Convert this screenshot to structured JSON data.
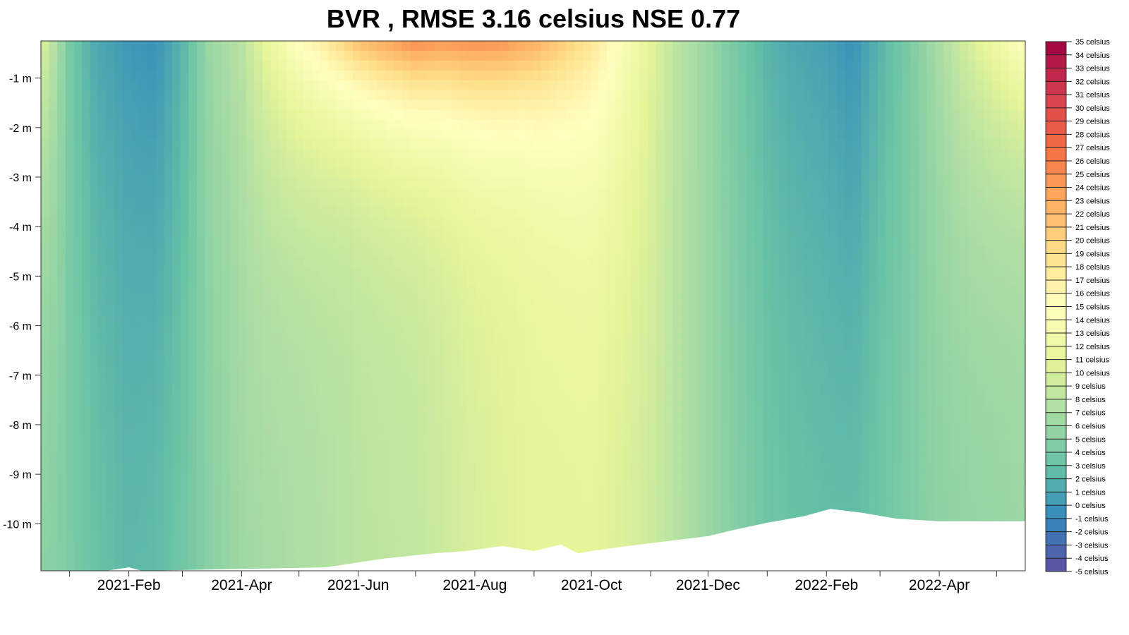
{
  "chart_data": {
    "type": "heatmap",
    "title": "BVR , RMSE 3.16 celsius NSE 0.77",
    "xlabel": "",
    "ylabel": "",
    "x_tick_labels": [
      "2021-Feb",
      "2021-Apr",
      "2021-Jun",
      "2021-Aug",
      "2021-Oct",
      "2021-Dec",
      "2022-Feb",
      "2022-Apr"
    ],
    "x_ticks": [
      "2021-01-01",
      "2021-02-01",
      "2021-03-01",
      "2021-04-01",
      "2021-05-01",
      "2021-06-01",
      "2021-07-01",
      "2021-08-01",
      "2021-09-01",
      "2021-10-01",
      "2021-11-01",
      "2021-12-01",
      "2022-01-01",
      "2022-02-01",
      "2022-03-01",
      "2022-04-01",
      "2022-05-01"
    ],
    "xlim": [
      "2020-12-17",
      "2022-05-16"
    ],
    "y_tick_values": [
      -1,
      -2,
      -3,
      -4,
      -5,
      -6,
      -7,
      -8,
      -9,
      -10
    ],
    "y_tick_labels": [
      "-1 m",
      "-2 m",
      "-3 m",
      "-4 m",
      "-5 m",
      "-6 m",
      "-7 m",
      "-8 m",
      "-9 m",
      "-10 m"
    ],
    "ylim": [
      -10.95,
      -0.25
    ],
    "grid": false,
    "colorbar": {
      "min": -5,
      "max": 35,
      "step": 1,
      "unit_label": "celsius",
      "labels": [
        "35 celsius",
        "34 celsius",
        "33 celsius",
        "32 celsius",
        "31 celsius",
        "30 celsius",
        "29 celsius",
        "28 celsius",
        "27 celsius",
        "26 celsius",
        "25 celsius",
        "24 celsius",
        "23 celsius",
        "22 celsius",
        "21 celsius",
        "20 celsius",
        "19 celsius",
        "18 celsius",
        "17 celsius",
        "16 celsius",
        "15 celsius",
        "14 celsius",
        "13 celsius",
        "12 celsius",
        "11 celsius",
        "10 celsius",
        "9 celsius",
        "8 celsius",
        "7 celsius",
        "6 celsius",
        "5 celsius",
        "4 celsius",
        "3 celsius",
        "2 celsius",
        "1 celsius",
        "0 celsius",
        "-1 celsius",
        "-2 celsius",
        "-3 celsius",
        "-4 celsius",
        "-5 celsius"
      ],
      "palette": [
        "#9e0142",
        "#d53e4f",
        "#f46d43",
        "#fdae61",
        "#fee08b",
        "#ffffbf",
        "#e6f598",
        "#abdda4",
        "#66c2a5",
        "#3288bd",
        "#5e4fa2"
      ]
    },
    "bottom_depth": {
      "dates": [
        "2021-01-20",
        "2021-02-01",
        "2021-02-08",
        "2021-05-15",
        "2021-06-01",
        "2021-06-15",
        "2021-07-10",
        "2021-07-28",
        "2021-08-15",
        "2021-09-01",
        "2021-09-15",
        "2021-09-24",
        "2021-10-01",
        "2021-10-20",
        "2021-11-10",
        "2021-12-01",
        "2021-12-15",
        "2022-01-01",
        "2022-01-20",
        "2022-02-03",
        "2022-02-20",
        "2022-03-10",
        "2022-04-01",
        "2022-05-10"
      ],
      "depths": [
        -10.95,
        -10.88,
        -10.95,
        -10.88,
        -10.78,
        -10.7,
        -10.6,
        -10.55,
        -10.45,
        -10.55,
        -10.42,
        -10.6,
        -10.55,
        -10.45,
        -10.35,
        -10.25,
        -10.12,
        -9.98,
        -9.85,
        -9.7,
        -9.78,
        -9.9,
        -9.95,
        -9.95
      ]
    },
    "temperature_model": {
      "surface_dates": [
        "2020-12-17",
        "2021-01-01",
        "2021-01-15",
        "2021-02-01",
        "2021-02-15",
        "2021-03-01",
        "2021-03-15",
        "2021-04-01",
        "2021-04-15",
        "2021-05-01",
        "2021-05-15",
        "2021-06-01",
        "2021-06-15",
        "2021-07-01",
        "2021-07-15",
        "2021-08-01",
        "2021-08-15",
        "2021-09-01",
        "2021-09-15",
        "2021-10-01",
        "2021-10-15",
        "2021-11-01",
        "2021-11-15",
        "2021-12-01",
        "2021-12-15",
        "2022-01-01",
        "2022-01-15",
        "2022-02-01",
        "2022-02-15",
        "2022-03-01",
        "2022-03-15",
        "2022-04-01",
        "2022-04-15",
        "2022-05-01",
        "2022-05-16"
      ],
      "surface_temps": [
        11,
        4,
        1,
        0,
        -0.5,
        2,
        6,
        8,
        12,
        16,
        19,
        24,
        26,
        28,
        27,
        27.5,
        27,
        25,
        22,
        19,
        15,
        11,
        8,
        6,
        4,
        2,
        1,
        0.5,
        -0.5,
        2,
        4,
        7,
        10,
        13,
        16
      ],
      "bottom_dates": [
        "2020-12-17",
        "2021-02-01",
        "2021-03-01",
        "2021-04-01",
        "2021-05-01",
        "2021-06-01",
        "2021-07-01",
        "2021-08-01",
        "2021-09-01",
        "2021-10-01",
        "2021-11-01",
        "2021-12-01",
        "2022-01-01",
        "2022-02-01",
        "2022-03-01",
        "2022-04-01",
        "2022-05-16"
      ],
      "bottom_temps": [
        5,
        3,
        4,
        6,
        7,
        8,
        8.5,
        10,
        11,
        11,
        9,
        6,
        4,
        3.5,
        4,
        5,
        6
      ]
    }
  }
}
